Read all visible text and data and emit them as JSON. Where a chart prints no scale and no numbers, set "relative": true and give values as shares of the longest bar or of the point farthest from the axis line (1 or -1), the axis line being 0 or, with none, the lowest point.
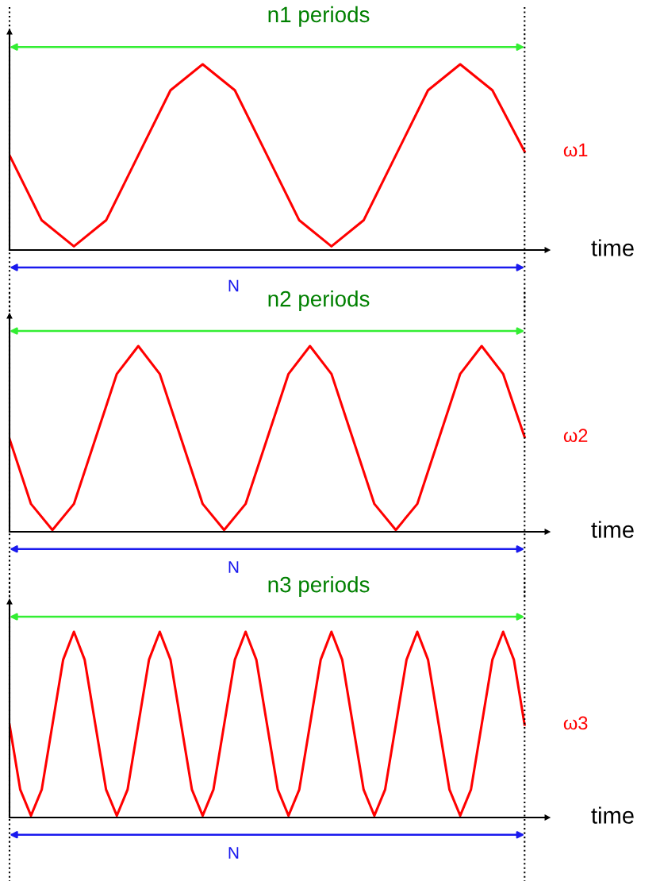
{
  "chart_data": [
    {
      "type": "line",
      "relative": true,
      "xlabel": "time",
      "annotations": [
        "n1 periods",
        "N"
      ],
      "categories": [
        null,
        null,
        null,
        null,
        null,
        null,
        null,
        null,
        null,
        null,
        null,
        null,
        null,
        null,
        null,
        null,
        null
      ],
      "series": [
        {
          "name": "ω1",
          "color": "#ff0000",
          "values": [
            0.51,
            0.16,
            0.02,
            0.16,
            0.51,
            0.86,
            1,
            0.86,
            0.51,
            0.16,
            0.02,
            0.16,
            0.51,
            0.86,
            1,
            0.86,
            0.53
          ]
        }
      ]
    },
    {
      "type": "line",
      "relative": true,
      "xlabel": "time",
      "annotations": [
        "n2 periods",
        "N"
      ],
      "categories": [
        null,
        null,
        null,
        null,
        null,
        null,
        null,
        null,
        null,
        null,
        null,
        null,
        null,
        null,
        null,
        null,
        null,
        null,
        null,
        null,
        null,
        null,
        null,
        null,
        null
      ],
      "series": [
        {
          "name": "ω2",
          "color": "#ff0000",
          "values": [
            0.5,
            0.15,
            0.01,
            0.15,
            0.5,
            0.85,
            1,
            0.85,
            0.5,
            0.15,
            0.01,
            0.15,
            0.5,
            0.85,
            1,
            0.85,
            0.5,
            0.15,
            0.01,
            0.15,
            0.5,
            0.85,
            1,
            0.85,
            0.51
          ]
        }
      ]
    },
    {
      "type": "line",
      "relative": true,
      "xlabel": "time",
      "annotations": [
        "n3 periods",
        "N"
      ],
      "categories": [
        null,
        null,
        null,
        null,
        null,
        null,
        null,
        null,
        null,
        null,
        null,
        null,
        null,
        null,
        null,
        null,
        null,
        null,
        null,
        null,
        null,
        null,
        null,
        null,
        null,
        null,
        null,
        null,
        null,
        null,
        null,
        null,
        null,
        null,
        null,
        null,
        null,
        null,
        null,
        null,
        null,
        null,
        null,
        null,
        null,
        null,
        null,
        null,
        null
      ],
      "series": [
        {
          "name": "ω3",
          "color": "#ff0000",
          "values": [
            0.5,
            0.15,
            0.01,
            0.15,
            0.5,
            0.85,
            1,
            0.85,
            0.5,
            0.15,
            0.01,
            0.15,
            0.5,
            0.85,
            1,
            0.85,
            0.5,
            0.15,
            0.01,
            0.15,
            0.5,
            0.85,
            1,
            0.85,
            0.5,
            0.15,
            0.01,
            0.15,
            0.5,
            0.85,
            1,
            0.85,
            0.5,
            0.15,
            0.01,
            0.15,
            0.5,
            0.85,
            1,
            0.85,
            0.5,
            0.15,
            0.01,
            0.15,
            0.5,
            0.85,
            1,
            0.85,
            0.5
          ]
        }
      ]
    }
  ]
}
